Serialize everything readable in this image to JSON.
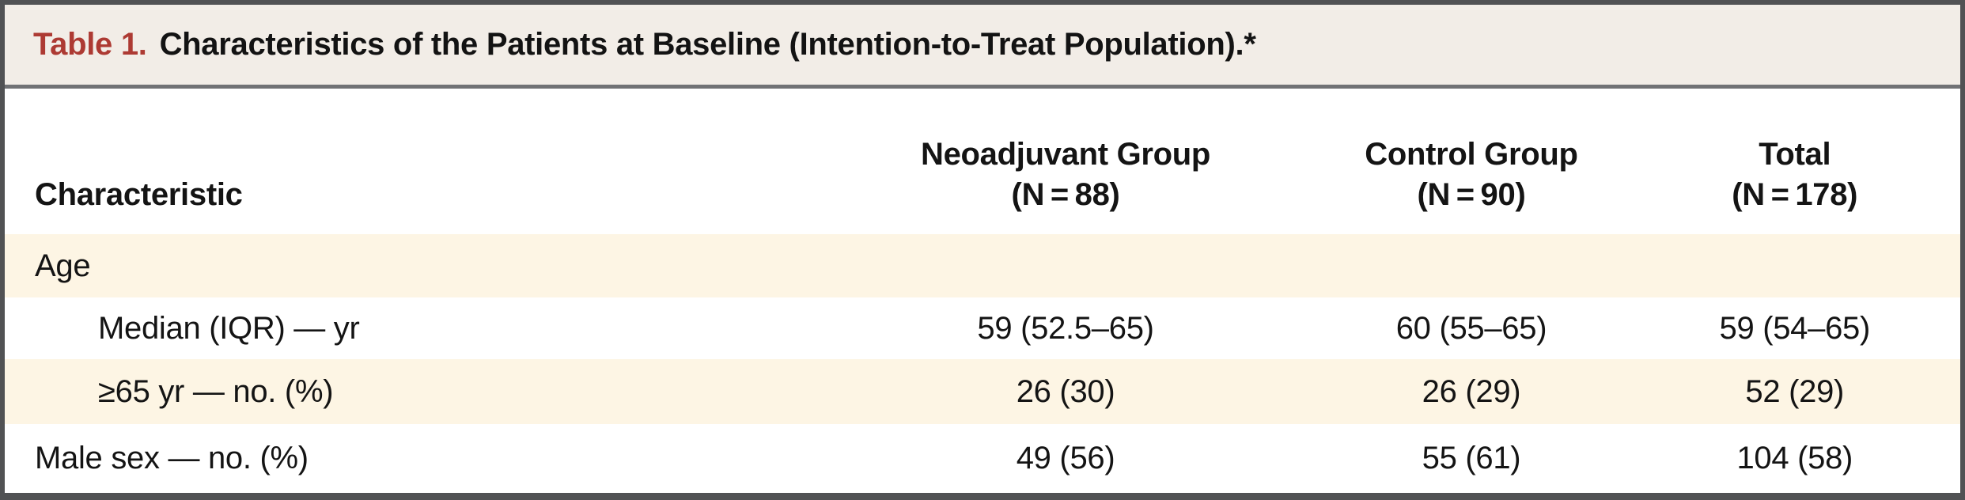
{
  "title": {
    "label": "Table 1.",
    "text": "Characteristics of the Patients at Baseline (Intention-to-Treat Population).*"
  },
  "columns": [
    {
      "label": "Characteristic"
    },
    {
      "label": "Neoadjuvant Group",
      "sub": "(N = 88)"
    },
    {
      "label": "Control Group",
      "sub": "(N = 90)"
    },
    {
      "label": "Total",
      "sub": "(N = 178)"
    }
  ],
  "rows": [
    {
      "label": "Age",
      "values": [
        "",
        "",
        ""
      ]
    },
    {
      "label": "Median (IQR) — yr",
      "values": [
        "59 (52.5–65)",
        "60 (55–65)",
        "59 (54–65)"
      ]
    },
    {
      "label": "≥65 yr — no. (%)",
      "values": [
        "26 (30)",
        "26 (29)",
        "52 (29)"
      ]
    },
    {
      "label": "Male sex — no. (%)",
      "values": [
        "49 (56)",
        "55 (61)",
        "104 (58)"
      ]
    }
  ],
  "colors": {
    "title_accent": "#ad3a33",
    "title_band_bg": "#f2ede7",
    "shaded_row_bg": "#fdf5e4",
    "border": "#515254",
    "text": "#141414"
  }
}
